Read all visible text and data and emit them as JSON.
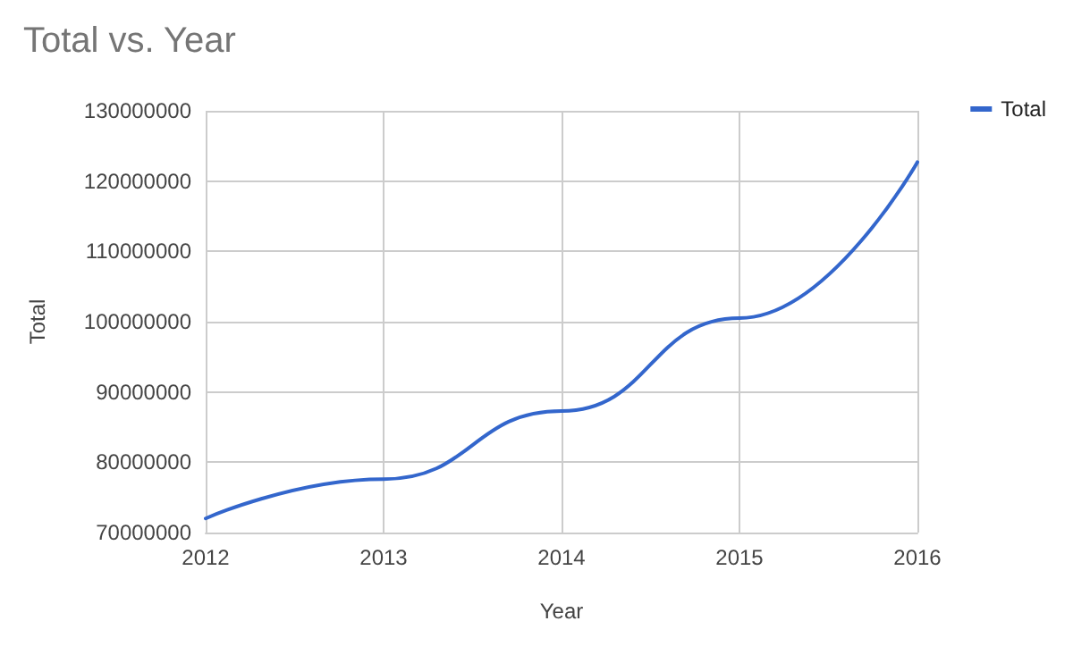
{
  "chart_data": {
    "type": "line",
    "title": "Total vs. Year",
    "xlabel": "Year",
    "ylabel": "Total",
    "x": [
      2012,
      2013,
      2014,
      2015,
      2016
    ],
    "series": [
      {
        "name": "Total",
        "color": "#3366cc",
        "values": [
          72000000,
          77600000,
          87300000,
          100500000,
          122700000
        ]
      }
    ],
    "xlim": [
      2012,
      2016
    ],
    "xticks": [
      2012,
      2013,
      2014,
      2015,
      2016
    ],
    "ylim": [
      70000000,
      130000000
    ],
    "yticks": [
      70000000,
      80000000,
      90000000,
      100000000,
      110000000,
      120000000,
      130000000
    ],
    "grid": true,
    "legend": "right",
    "marker": "none",
    "line_style": "solid"
  }
}
